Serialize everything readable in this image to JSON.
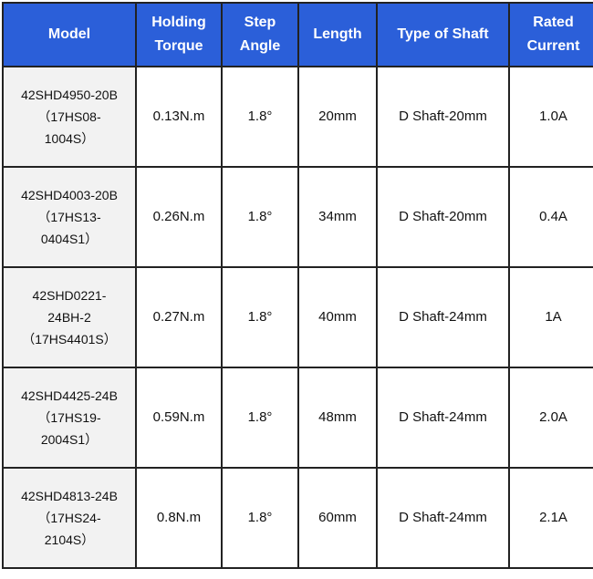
{
  "colors": {
    "header_bg": "#2b5fd9",
    "header_text": "#ffffff",
    "model_bg": "#f2f2f2"
  },
  "headers": [
    "Model",
    "Holding Torque",
    "Step Angle",
    "Length",
    "Type of Shaft",
    "Rated Current"
  ],
  "rows": [
    {
      "model": [
        "42SHD4950-20B",
        "（17HS08-",
        "1004S）"
      ],
      "torque": "0.13N.m",
      "angle": "1.8°",
      "length": "20mm",
      "shaft": "D Shaft-20mm",
      "current": "1.0A"
    },
    {
      "model": [
        "42SHD4003-20B",
        "（17HS13-",
        "0404S1）"
      ],
      "torque": "0.26N.m",
      "angle": "1.8°",
      "length": "34mm",
      "shaft": "D Shaft-20mm",
      "current": "0.4A"
    },
    {
      "model": [
        "42SHD0221-",
        "24BH-2",
        "（17HS4401S）"
      ],
      "torque": "0.27N.m",
      "angle": "1.8°",
      "length": "40mm",
      "shaft": "D Shaft-24mm",
      "current": "1A"
    },
    {
      "model": [
        "42SHD4425-24B",
        "（17HS19-",
        "2004S1）"
      ],
      "torque": "0.59N.m",
      "angle": "1.8°",
      "length": "48mm",
      "shaft": "D Shaft-24mm",
      "current": "2.0A"
    },
    {
      "model": [
        "42SHD4813-24B",
        "（17HS24-",
        "2104S）"
      ],
      "torque": "0.8N.m",
      "angle": "1.8°",
      "length": "60mm",
      "shaft": "D Shaft-24mm",
      "current": "2.1A"
    }
  ]
}
